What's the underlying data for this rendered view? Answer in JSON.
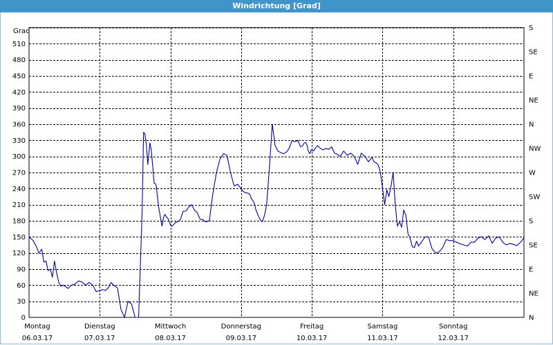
{
  "window": {
    "title": "Windrichtung [Grad]"
  },
  "chart_data": {
    "type": "line",
    "title": "Windrichtung [Grad]",
    "ylabel": "Grad",
    "ylim": [
      0,
      540
    ],
    "yticks": [
      0,
      30,
      60,
      90,
      120,
      150,
      180,
      210,
      240,
      270,
      300,
      330,
      360,
      390,
      420,
      450,
      480,
      510
    ],
    "right_axis_labels": [
      "N",
      "NE",
      "E",
      "SE",
      "S",
      "SW",
      "W",
      "NW",
      "N",
      "NE",
      "E",
      "SE",
      "S"
    ],
    "xlim": [
      0,
      7
    ],
    "x_categories": [
      {
        "day": "Montag",
        "date": "06.03.17"
      },
      {
        "day": "Dienstag",
        "date": "07.03.17"
      },
      {
        "day": "Mittwoch",
        "date": "08.03.17"
      },
      {
        "day": "Donnerstag",
        "date": "09.03.17"
      },
      {
        "day": "Freitag",
        "date": "10.03.17"
      },
      {
        "day": "Samstag",
        "date": "11.03.17"
      },
      {
        "day": "Sonntag",
        "date": "12.03.17"
      }
    ],
    "grid": true,
    "series": [
      {
        "color": "#0000aa",
        "x": [
          0.0,
          0.06,
          0.1,
          0.14,
          0.18,
          0.21,
          0.24,
          0.27,
          0.3,
          0.33,
          0.36,
          0.39,
          0.42,
          0.45,
          0.48,
          0.51,
          0.55,
          0.6,
          0.65,
          0.7,
          0.75,
          0.8,
          0.85,
          0.9,
          0.95,
          1.0,
          1.04,
          1.08,
          1.12,
          1.16,
          1.2,
          1.25,
          1.3,
          1.35,
          1.4,
          1.45,
          1.5,
          1.55,
          1.6,
          1.62,
          1.64,
          1.66,
          1.68,
          1.71,
          1.73,
          1.74,
          1.75,
          1.76,
          1.77,
          1.78,
          1.8,
          1.82,
          1.84,
          1.86,
          1.88,
          1.9,
          1.92,
          1.94,
          1.96,
          1.98,
          2.0,
          2.02,
          2.04,
          2.06,
          2.08,
          2.1,
          2.14,
          2.18,
          2.22,
          2.26,
          2.3,
          2.34,
          2.38,
          2.42,
          2.46,
          2.5,
          2.55,
          2.6,
          2.65,
          2.7,
          2.75,
          2.8,
          2.85,
          2.9,
          2.95,
          3.0,
          3.03,
          3.06,
          3.09,
          3.12,
          3.15,
          3.18,
          3.21,
          3.24,
          3.27,
          3.3,
          3.33,
          3.36,
          3.4,
          3.44,
          3.48,
          3.52,
          3.56,
          3.6,
          3.64,
          3.68,
          3.72,
          3.76,
          3.8,
          3.84,
          3.87,
          3.89,
          3.91,
          3.93,
          3.95,
          3.97,
          3.99,
          4.02,
          4.05,
          4.08,
          4.12,
          4.16,
          4.2,
          4.24,
          4.28,
          4.32,
          4.36,
          4.4,
          4.45,
          4.5,
          4.55,
          4.6,
          4.65,
          4.7,
          4.75,
          4.8,
          4.85,
          4.88,
          4.91,
          4.94,
          4.97,
          5.0,
          5.03,
          5.06,
          5.09,
          5.12,
          5.15,
          5.18,
          5.21,
          5.24,
          5.27,
          5.3,
          5.33,
          5.36,
          5.39,
          5.42,
          5.45,
          5.48,
          5.51,
          5.55,
          5.6,
          5.65,
          5.7,
          5.75,
          5.8,
          5.85,
          5.9,
          5.95,
          6.0,
          6.05,
          6.1,
          6.15,
          6.2,
          6.25,
          6.3,
          6.35,
          6.4,
          6.45,
          6.5,
          6.55,
          6.6,
          6.65,
          6.7,
          6.75,
          6.8,
          6.85,
          6.9,
          6.95,
          7.0
        ],
        "values": [
          150,
          143,
          133,
          120,
          127,
          103,
          105,
          87,
          90,
          75,
          105,
          83,
          65,
          58,
          60,
          58,
          54,
          60,
          62,
          68,
          66,
          60,
          65,
          60,
          48,
          50,
          52,
          50,
          55,
          65,
          60,
          55,
          15,
          0,
          30,
          25,
          0,
          0,
          200,
          345,
          342,
          320,
          285,
          325,
          310,
          295,
          280,
          265,
          250,
          250,
          245,
          220,
          200,
          185,
          170,
          185,
          192,
          188,
          185,
          180,
          172,
          170,
          172,
          175,
          178,
          178,
          182,
          198,
          198,
          206,
          210,
          200,
          195,
          183,
          182,
          178,
          180,
          230,
          270,
          295,
          305,
          302,
          270,
          245,
          248,
          240,
          235,
          232,
          232,
          230,
          220,
          215,
          200,
          190,
          182,
          178,
          190,
          210,
          280,
          360,
          320,
          310,
          307,
          305,
          308,
          315,
          330,
          327,
          330,
          318,
          320,
          325,
          326,
          322,
          310,
          305,
          312,
          310,
          315,
          320,
          315,
          312,
          315,
          313,
          318,
          306,
          304,
          300,
          310,
          302,
          306,
          300,
          285,
          306,
          300,
          290,
          298,
          290,
          288,
          284,
          270,
          240,
          210,
          238,
          225,
          245,
          270,
          210,
          170,
          178,
          168,
          200,
          190,
          155,
          148,
          132,
          130,
          142,
          133,
          140,
          150,
          150,
          128,
          120,
          122,
          130,
          145,
          143,
          143,
          140,
          137,
          135,
          133,
          140,
          140,
          148,
          150,
          145,
          152,
          138,
          148,
          150,
          140,
          135,
          138,
          136,
          134,
          140,
          148
        ]
      }
    ]
  }
}
